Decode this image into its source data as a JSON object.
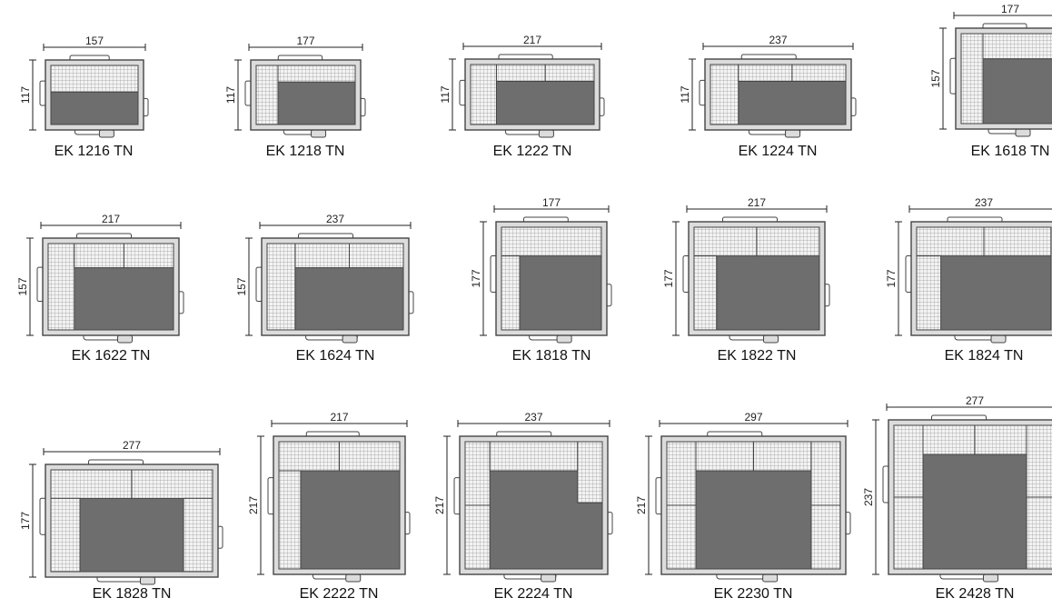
{
  "colors": {
    "wall_fill": "#dcdcdc",
    "wall_stroke": "#444444",
    "floor": "#6e6e6e",
    "panel": "#f3f3f3",
    "grid": "#9a9a9a",
    "dimension": "#222222"
  },
  "plans": [
    {
      "label": "EK 1216 TN",
      "width": "157",
      "depth": "117",
      "layout": "single-back"
    },
    {
      "label": "EK 1218 TN",
      "width": "177",
      "depth": "117",
      "layout": "back-left-tall"
    },
    {
      "label": "EK 1222 TN",
      "width": "217",
      "depth": "117",
      "layout": "back-left-double"
    },
    {
      "label": "EK 1224 TN",
      "width": "237",
      "depth": "117",
      "layout": "back-left-double"
    },
    {
      "label": "EK 1618 TN",
      "width": "177",
      "depth": "157",
      "layout": "back-left-tall"
    },
    {
      "label": "EK 1622 TN",
      "width": "217",
      "depth": "157",
      "layout": "back-left-double"
    },
    {
      "label": "EK 1624 TN",
      "width": "237",
      "depth": "157",
      "layout": "back-left-double"
    },
    {
      "label": "EK 1818 TN",
      "width": "177",
      "depth": "177",
      "layout": "back-left-short"
    },
    {
      "label": "EK 1822 TN",
      "width": "217",
      "depth": "177",
      "layout": "back-left-short-double"
    },
    {
      "label": "EK 1824 TN",
      "width": "237",
      "depth": "177",
      "layout": "back-left-short-double"
    },
    {
      "label": "EK 1828 TN",
      "width": "277",
      "depth": "177",
      "layout": "u-shape"
    },
    {
      "label": "EK 2222 TN",
      "width": "217",
      "depth": "217",
      "layout": "back-left-short-double"
    },
    {
      "label": "EK 2224 TN",
      "width": "237",
      "depth": "217",
      "layout": "u-split"
    },
    {
      "label": "EK 2230 TN",
      "width": "297",
      "depth": "217",
      "layout": "u-split-double"
    },
    {
      "label": "EK 2428 TN",
      "width": "277",
      "depth": "237",
      "layout": "u-split-double"
    }
  ]
}
